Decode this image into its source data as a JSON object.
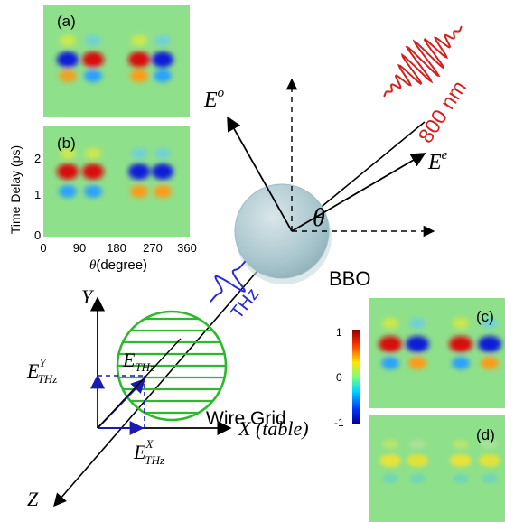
{
  "panels": {
    "a": {
      "label": "(a)"
    },
    "b": {
      "label": "(b)"
    },
    "c": {
      "label": "(c)"
    },
    "d": {
      "label": "(d)"
    }
  },
  "heatmap_axes": {
    "ylabel": "Time Delay (ps)",
    "yticks": [
      "0",
      "1",
      "2"
    ],
    "xticks": [
      "0",
      "90",
      "180",
      "270",
      "360"
    ],
    "xlabel_symbol": "θ",
    "xlabel_unit": "(degree)"
  },
  "colorbar": {
    "ticks": [
      "1",
      "0",
      "-1"
    ],
    "colors": [
      "#8b0000",
      "#ff2a00",
      "#ffe600",
      "#7dff7a",
      "#00d8ff",
      "#0033ff",
      "#00008f"
    ]
  },
  "beam": {
    "laser_label": "800 nm",
    "laser_color": "#d62020",
    "crystal_label": "BBO",
    "thz_label": "THz",
    "thz_color": "#2a2ad0",
    "angle_symbol": "θ",
    "e_ordinary": {
      "base": "E",
      "sup": "o"
    },
    "e_extra": {
      "base": "E",
      "sup": "e"
    }
  },
  "lab_frame": {
    "axis_y": "Y",
    "axis_x": "X (table)",
    "axis_z": "Z",
    "wire_grid_label": "Wire Grid",
    "wire_grid_color": "#2eb82e",
    "vector_color": "#1a1ab0",
    "e_thz": {
      "base": "E",
      "sub": "THz"
    },
    "e_thz_y": {
      "base": "E",
      "sub": "THz",
      "sup": "Y"
    },
    "e_thz_x": {
      "base": "E",
      "sub": "THz",
      "sup": "X"
    }
  }
}
